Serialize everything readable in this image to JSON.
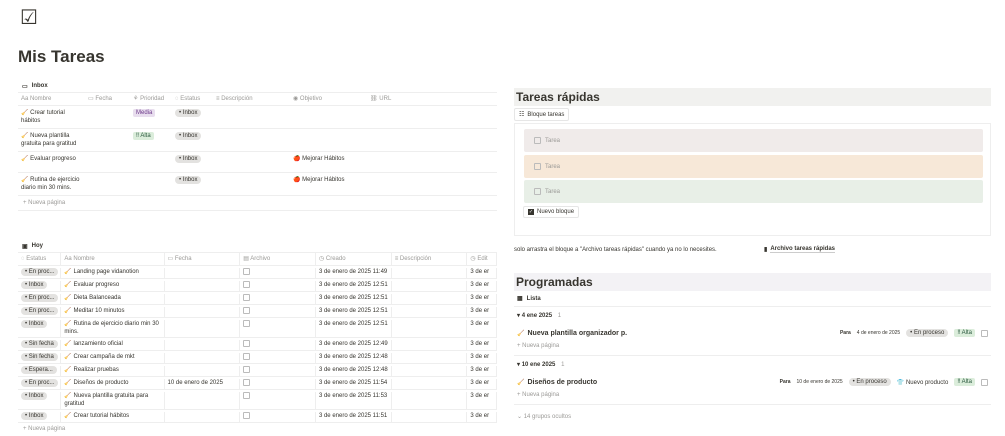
{
  "page": {
    "icon": "checklist-icon",
    "title": "Mis Tareas"
  },
  "inbox": {
    "label": "Inbox",
    "columns": [
      "Nombre",
      "Fecha",
      "Prioridad",
      "Estatus",
      "Descripción",
      "Objetivo",
      "URL"
    ],
    "rows": [
      {
        "nombre": "Crear tutorial hábitos",
        "prioridad": "Media",
        "estatus": "Inbox",
        "objetivo": ""
      },
      {
        "nombre": "Nueva plantilla gratuita para gratitud",
        "prioridad": "‼ Alta",
        "estatus": "Inbox",
        "objetivo": ""
      },
      {
        "nombre": "Evaluar progreso",
        "prioridad": "",
        "estatus": "Inbox",
        "objetivo": "Mejorar Hábitos"
      },
      {
        "nombre": "Rutina de ejercicio diario min 30 mins.",
        "prioridad": "",
        "estatus": "Inbox",
        "objetivo": "Mejorar Hábitos"
      }
    ],
    "new_page": "+ Nueva página"
  },
  "hoy": {
    "label": "Hoy",
    "columns": [
      "Estatus",
      "Nombre",
      "Fecha",
      "Archivo",
      "Creado",
      "Descripción",
      "Edit"
    ],
    "rows": [
      {
        "estatus": "En proc...",
        "nombre": "Landing page vidanotion",
        "fecha": "",
        "creado": "3 de enero de 2025 11:49",
        "edit": "3 de er"
      },
      {
        "estatus": "Inbox",
        "nombre": "Evaluar progreso",
        "fecha": "",
        "creado": "3 de enero de 2025 12:51",
        "edit": "3 de er"
      },
      {
        "estatus": "En proc...",
        "nombre": "Dieta Balanceada",
        "fecha": "",
        "creado": "3 de enero de 2025 12:51",
        "edit": "3 de er"
      },
      {
        "estatus": "En proc...",
        "nombre": "Meditar 10 minutos",
        "fecha": "",
        "creado": "3 de enero de 2025 12:51",
        "edit": "3 de er"
      },
      {
        "estatus": "Inbox",
        "nombre": "Rutina de ejercicio diario min 30 mins.",
        "fecha": "",
        "creado": "3 de enero de 2025 12:51",
        "edit": "3 de er"
      },
      {
        "estatus": "Sin fecha",
        "nombre": "lanzamiento oficial",
        "fecha": "",
        "creado": "3 de enero de 2025 12:49",
        "edit": "3 de er"
      },
      {
        "estatus": "Sin fecha",
        "nombre": "Crear campaña de mkt",
        "fecha": "",
        "creado": "3 de enero de 2025 12:48",
        "edit": "3 de er"
      },
      {
        "estatus": "Espera...",
        "nombre": "Realizar pruebas",
        "fecha": "",
        "creado": "3 de enero de 2025 12:48",
        "edit": "3 de er"
      },
      {
        "estatus": "En proc...",
        "nombre": "Diseños de producto",
        "fecha": "10 de enero de 2025",
        "creado": "3 de enero de 2025 11:54",
        "edit": "3 de er"
      },
      {
        "estatus": "Inbox",
        "nombre": "Nueva plantilla gratuita para gratitud",
        "fecha": "",
        "creado": "3 de enero de 2025 11:53",
        "edit": "3 de er"
      },
      {
        "estatus": "Inbox",
        "nombre": "Crear tutorial hábitos",
        "fecha": "",
        "creado": "3 de enero de 2025 11:51",
        "edit": "3 de er"
      }
    ],
    "new_page": "+ Nueva página"
  },
  "rapidas": {
    "title": "Tareas rápidas",
    "tab": "Bloque tareas",
    "cards": [
      {
        "label": "Tarea",
        "color": "#f0ebea"
      },
      {
        "label": "Tarea",
        "color": "#f7e8d8"
      },
      {
        "label": "Tarea",
        "color": "#e8efe7"
      }
    ],
    "new_block": "Nuevo bloque",
    "hint": "solo arrastra el bloque a \"Archivo tareas rápidas\" cuando ya no lo necesites.",
    "archive_link": "Archivo tareas rápidas"
  },
  "programadas": {
    "title": "Programadas",
    "view": "Lista",
    "groups": [
      {
        "date": "4 ene 2025",
        "count": "1",
        "item": "Nueva plantilla organizador p.",
        "para": "Para",
        "fecha": "4 de enero de 2025",
        "estatus": "En proceso",
        "objetivo": "",
        "prioridad": "‼ Alta",
        "new_page": "+ Nueva página"
      },
      {
        "date": "10 ene 2025",
        "count": "1",
        "item": "Diseños de producto",
        "para": "Para",
        "fecha": "10 de enero de 2025",
        "estatus": "En proceso",
        "objetivo": "Nuevo producto",
        "prioridad": "‼ Alta",
        "new_page": "+ Nueva página"
      }
    ],
    "hidden": "14 grupos ocultos"
  },
  "colors": {
    "media": "#e8deee",
    "alta": "#dbeddb",
    "pill": "#e3e2e0"
  }
}
